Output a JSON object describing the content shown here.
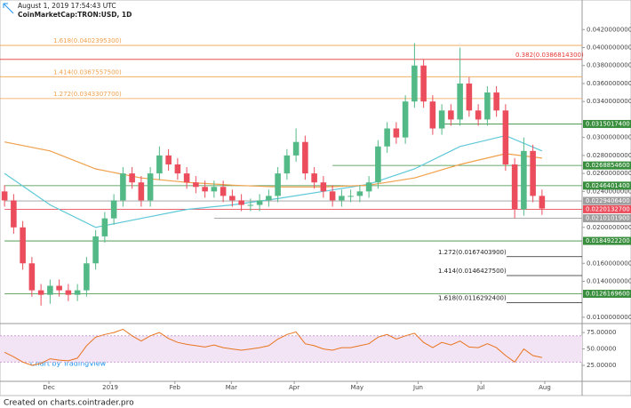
{
  "chart_data": {
    "type": "candlestick",
    "header": "August 1, 2019 17:54:43 UTC",
    "symbol": "CoinMarketCap:TRON:USD, 1D",
    "watermark": "Chart by TradingView",
    "footer": "Created on charts.cointrader.pro",
    "up_color": "#53b987",
    "down_color": "#eb4d5c",
    "open": [
      0.024,
      0.023,
      0.02,
      0.016,
      0.013,
      0.0125,
      0.0135,
      0.013,
      0.0125,
      0.013,
      0.016,
      0.019,
      0.021,
      0.023,
      0.026,
      0.025,
      0.023,
      0.026,
      0.028,
      0.027,
      0.026,
      0.025,
      0.0245,
      0.024,
      0.0245,
      0.0235,
      0.023,
      0.0225,
      0.0225,
      0.023,
      0.0235,
      0.026,
      0.028,
      0.0295,
      0.026,
      0.025,
      0.024,
      0.023,
      0.0235,
      0.0235,
      0.024,
      0.025,
      0.029,
      0.031,
      0.03,
      0.034,
      0.038,
      0.034,
      0.031,
      0.033,
      0.032,
      0.036,
      0.033,
      0.032,
      0.035,
      0.033,
      0.027,
      0.022,
      0.0285,
      0.0235
    ],
    "high": [
      0.0247,
      0.0237,
      0.0207,
      0.0167,
      0.0137,
      0.0142,
      0.0142,
      0.0137,
      0.0137,
      0.0167,
      0.0197,
      0.0217,
      0.0237,
      0.0267,
      0.0267,
      0.0257,
      0.0267,
      0.029,
      0.0287,
      0.0277,
      0.0267,
      0.0257,
      0.0252,
      0.0252,
      0.0252,
      0.0242,
      0.0237,
      0.0232,
      0.0237,
      0.0242,
      0.0267,
      0.0287,
      0.031,
      0.0302,
      0.0267,
      0.0257,
      0.0247,
      0.0242,
      0.0242,
      0.0247,
      0.0257,
      0.0297,
      0.0317,
      0.0317,
      0.0347,
      0.0405,
      0.0387,
      0.0347,
      0.0337,
      0.0337,
      0.04,
      0.0367,
      0.0337,
      0.0357,
      0.0357,
      0.0337,
      0.0277,
      0.03,
      0.0292,
      0.0242
    ],
    "low": [
      0.0223,
      0.0193,
      0.0153,
      0.0123,
      0.0113,
      0.0115,
      0.0123,
      0.0118,
      0.0118,
      0.0123,
      0.0153,
      0.0183,
      0.0203,
      0.0223,
      0.0243,
      0.0223,
      0.0223,
      0.0253,
      0.0263,
      0.0253,
      0.0243,
      0.0238,
      0.0233,
      0.0233,
      0.0228,
      0.0223,
      0.0218,
      0.0218,
      0.0218,
      0.0223,
      0.0228,
      0.0253,
      0.0273,
      0.0253,
      0.0243,
      0.0233,
      0.0223,
      0.0223,
      0.0228,
      0.0228,
      0.0233,
      0.0243,
      0.0283,
      0.0293,
      0.0293,
      0.0333,
      0.0333,
      0.0303,
      0.0303,
      0.0313,
      0.0313,
      0.0323,
      0.0313,
      0.0313,
      0.0323,
      0.0263,
      0.021,
      0.0213,
      0.0228,
      0.0214
    ],
    "close": [
      0.023,
      0.02,
      0.016,
      0.013,
      0.0125,
      0.0135,
      0.013,
      0.0125,
      0.013,
      0.016,
      0.019,
      0.021,
      0.023,
      0.026,
      0.025,
      0.023,
      0.026,
      0.028,
      0.027,
      0.026,
      0.025,
      0.0245,
      0.024,
      0.0245,
      0.0235,
      0.023,
      0.0225,
      0.0225,
      0.023,
      0.0235,
      0.026,
      0.028,
      0.0295,
      0.026,
      0.025,
      0.024,
      0.023,
      0.0235,
      0.0235,
      0.024,
      0.025,
      0.029,
      0.031,
      0.03,
      0.034,
      0.038,
      0.034,
      0.031,
      0.033,
      0.032,
      0.036,
      0.033,
      0.032,
      0.035,
      0.033,
      0.027,
      0.022,
      0.0285,
      0.0235,
      0.0221
    ],
    "lines": [
      {
        "color": "#5ec8d8",
        "x": [
          0,
          5,
          10,
          15,
          20,
          25,
          30,
          35,
          40,
          45,
          50,
          55,
          59
        ],
        "values": [
          0.026,
          0.0225,
          0.02,
          0.021,
          0.022,
          0.0225,
          0.0232,
          0.024,
          0.0248,
          0.0265,
          0.029,
          0.0302,
          0.0285
        ]
      },
      {
        "color": "#f0a04b",
        "x": [
          0,
          5,
          10,
          15,
          20,
          25,
          30,
          35,
          40,
          45,
          50,
          55,
          59
        ],
        "values": [
          0.0295,
          0.0285,
          0.0265,
          0.0255,
          0.025,
          0.0247,
          0.0245,
          0.0245,
          0.0247,
          0.0255,
          0.027,
          0.0282,
          0.0277
        ]
      }
    ],
    "ylim": [
      0.0095,
      0.0443
    ],
    "yticks": [
      {
        "value": 0.042,
        "label": "0.0420000000"
      },
      {
        "value": 0.04,
        "label": "0.0400000000"
      },
      {
        "value": 0.038,
        "label": "0.0380000000"
      },
      {
        "value": 0.036,
        "label": "0.0360000000"
      },
      {
        "value": 0.034,
        "label": "0.0340000000"
      },
      {
        "value": 0.03,
        "label": "0.0300000000"
      },
      {
        "value": 0.028,
        "label": "0.0280000000"
      },
      {
        "value": 0.026,
        "label": "0.0260000000"
      },
      {
        "value": 0.024,
        "label": "0.0240000000"
      },
      {
        "value": 0.02,
        "label": "0.0200000000"
      },
      {
        "value": 0.016,
        "label": "0.0160000000"
      },
      {
        "value": 0.014,
        "label": "0.0140000000"
      },
      {
        "value": 0.01,
        "label": "0.0100000000"
      }
    ],
    "fib_levels": [
      {
        "label": "1.618(0.0402395300)",
        "value": 0.04023953,
        "color": "#f0a04b",
        "side": "left"
      },
      {
        "label": "0.382(0.0386814300)",
        "value": 0.03868143,
        "color": "#e53935",
        "side": "right"
      },
      {
        "label": "1.414(0.0367557500)",
        "value": 0.03675575,
        "color": "#f0a04b",
        "side": "left"
      },
      {
        "label": "1.272(0.0343307700)",
        "value": 0.03433077,
        "color": "#f0a04b",
        "side": "left"
      },
      {
        "label": "1.272(0.0167403900)",
        "value": 0.01674039,
        "color": "#222222",
        "side": "low"
      },
      {
        "label": "1.414(0.0146427500)",
        "value": 0.01464275,
        "color": "#222222",
        "side": "low"
      },
      {
        "label": "1.618(0.0116292400)",
        "value": 0.01162924,
        "color": "#222222",
        "side": "low"
      }
    ],
    "price_levels": [
      {
        "value": 0.03150174,
        "label": "0.0315017400",
        "color": "#388e3c",
        "from": 48
      },
      {
        "value": 0.02688546,
        "label": "0.0268854600",
        "color": "#388e3c",
        "from": 36
      },
      {
        "value": 0.02464014,
        "label": "0.0246401400",
        "color": "#388e3c",
        "from": 0
      },
      {
        "value": 0.02294064,
        "label": "0.0229406400",
        "color": "#9e9e9e",
        "from": 0
      },
      {
        "value": 0.02201327,
        "label": "0.0220132700",
        "color": "#eb4d5c",
        "from": 0
      },
      {
        "value": 0.02101019,
        "label": "0.0210101900",
        "color": "#9e9e9e",
        "from": 23
      },
      {
        "value": 0.01849222,
        "label": "0.0184922200",
        "color": "#388e3c",
        "from": 0
      },
      {
        "value": 0.01261696,
        "label": "0.0126169600",
        "color": "#388e3c",
        "from": 0
      }
    ],
    "rsi": {
      "color": "#e8741e",
      "band_color": "#f3e4f5",
      "values": [
        45,
        38,
        30,
        25,
        28,
        35,
        33,
        32,
        36,
        55,
        68,
        72,
        75,
        80,
        70,
        62,
        70,
        75,
        66,
        60,
        57,
        55,
        53,
        56,
        52,
        50,
        48,
        50,
        52,
        55,
        65,
        72,
        76,
        58,
        55,
        50,
        48,
        52,
        52,
        55,
        58,
        68,
        72,
        65,
        70,
        74,
        60,
        52,
        60,
        56,
        62,
        53,
        52,
        58,
        52,
        40,
        30,
        50,
        40,
        37
      ],
      "band": [
        30,
        70
      ],
      "ylim": [
        2,
        86
      ],
      "yticks": [
        {
          "value": 75,
          "label": "75.00000"
        },
        {
          "value": 50,
          "label": "50.00000"
        },
        {
          "value": 25,
          "label": "25.00000"
        }
      ]
    },
    "xticks": [
      {
        "value": 4.87,
        "label": "Dec"
      },
      {
        "value": 11.6,
        "label": "2019"
      },
      {
        "value": 18.7,
        "label": "Feb"
      },
      {
        "value": 24.9,
        "label": "Mar"
      },
      {
        "value": 31.8,
        "label": "Apr"
      },
      {
        "value": 38.7,
        "label": "May"
      },
      {
        "value": 45.4,
        "label": "Jun"
      },
      {
        "value": 52.3,
        "label": "Jul"
      },
      {
        "value": 59.3,
        "label": "Aug"
      }
    ]
  }
}
